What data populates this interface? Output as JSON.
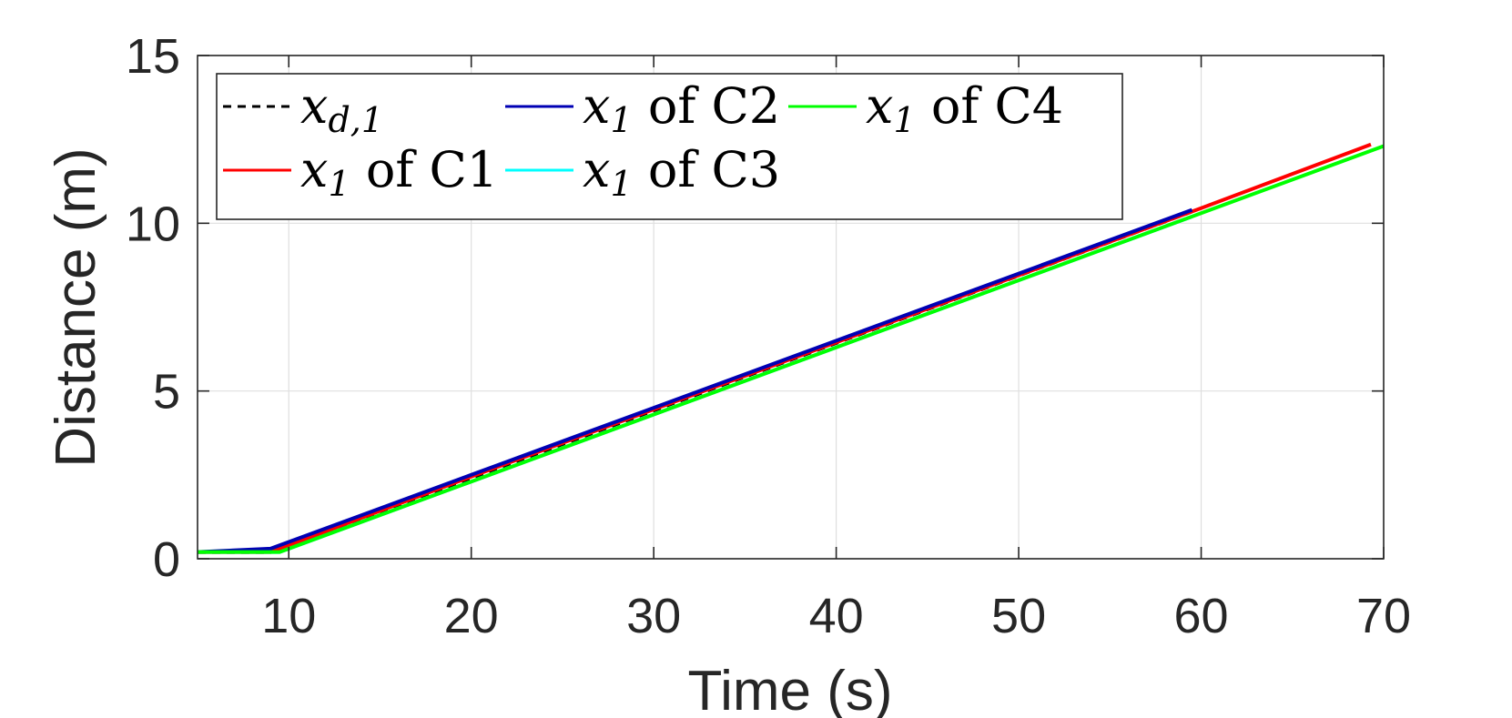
{
  "chart_data": {
    "type": "line",
    "title": "",
    "xlabel": "Time (s)",
    "ylabel": "Distance (m)",
    "xlim": [
      5,
      70
    ],
    "ylim": [
      0,
      15
    ],
    "xticks": [
      10,
      20,
      30,
      40,
      50,
      60,
      70
    ],
    "yticks": [
      0,
      5,
      10,
      15
    ],
    "grid": true,
    "legend_position": "top-left",
    "series": [
      {
        "name": "x_{d,1}",
        "legend": {
          "var": "x",
          "sub": "d,1",
          "suffix": ""
        },
        "color": "#000000",
        "dashed": true,
        "x": [
          5,
          9,
          59.5
        ],
        "y": [
          0.2,
          0.2,
          10.35
        ]
      },
      {
        "name": "x_1 of C1",
        "legend": {
          "var": "x",
          "sub": "1",
          "suffix": " of C1"
        },
        "color": "#ff0000",
        "dashed": false,
        "x": [
          5,
          9,
          20,
          30,
          40,
          50,
          60,
          69.3
        ],
        "y": [
          0.2,
          0.2,
          2.45,
          4.45,
          6.45,
          8.45,
          10.45,
          12.35
        ]
      },
      {
        "name": "x_1 of C2",
        "legend": {
          "var": "x",
          "sub": "1",
          "suffix": " of C2"
        },
        "color": "#0000b4",
        "dashed": false,
        "x": [
          5,
          9,
          20,
          30,
          40,
          50,
          59.5
        ],
        "y": [
          0.2,
          0.3,
          2.5,
          4.5,
          6.5,
          8.5,
          10.4
        ]
      },
      {
        "name": "x_1 of C3",
        "legend": {
          "var": "x",
          "sub": "1",
          "suffix": " of C3"
        },
        "color": "#00ffff",
        "dashed": false,
        "x": [
          5,
          9.5,
          20,
          30,
          40,
          50,
          59.5
        ],
        "y": [
          0.2,
          0.2,
          2.3,
          4.3,
          6.3,
          8.3,
          10.2
        ]
      },
      {
        "name": "x_1 of C4",
        "legend": {
          "var": "x",
          "sub": "1",
          "suffix": " of C4"
        },
        "color": "#00ff00",
        "dashed": false,
        "x": [
          5,
          9.5,
          20,
          30,
          40,
          50,
          60,
          70
        ],
        "y": [
          0.2,
          0.2,
          2.3,
          4.3,
          6.3,
          8.3,
          10.3,
          12.3
        ]
      }
    ]
  }
}
